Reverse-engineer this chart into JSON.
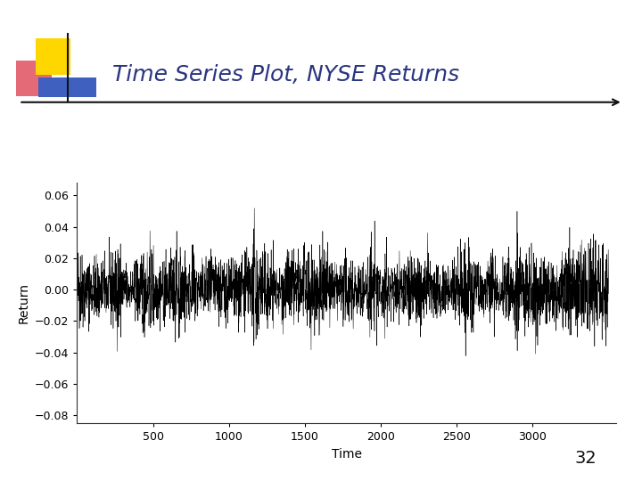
{
  "title": "Time Series Plot, NYSE Returns",
  "xlabel": "Time",
  "ylabel": "Return",
  "ylim": [
    -0.085,
    0.068
  ],
  "xlim": [
    0,
    3550
  ],
  "yticks": [
    -0.08,
    -0.06,
    -0.04,
    -0.02,
    0.0,
    0.02,
    0.04,
    0.06
  ],
  "xticks": [
    500,
    1000,
    1500,
    2000,
    2500,
    3000
  ],
  "n_points": 3500,
  "seed": 42,
  "line_color": "#000000",
  "background_color": "#ffffff",
  "title_color": "#2a3580",
  "title_fontsize": 18,
  "axis_fontsize": 10,
  "tick_fontsize": 9,
  "slide_number": "32",
  "dec_yellow": "#FFD700",
  "dec_red": "#e05060",
  "dec_blue": "#4060c0"
}
